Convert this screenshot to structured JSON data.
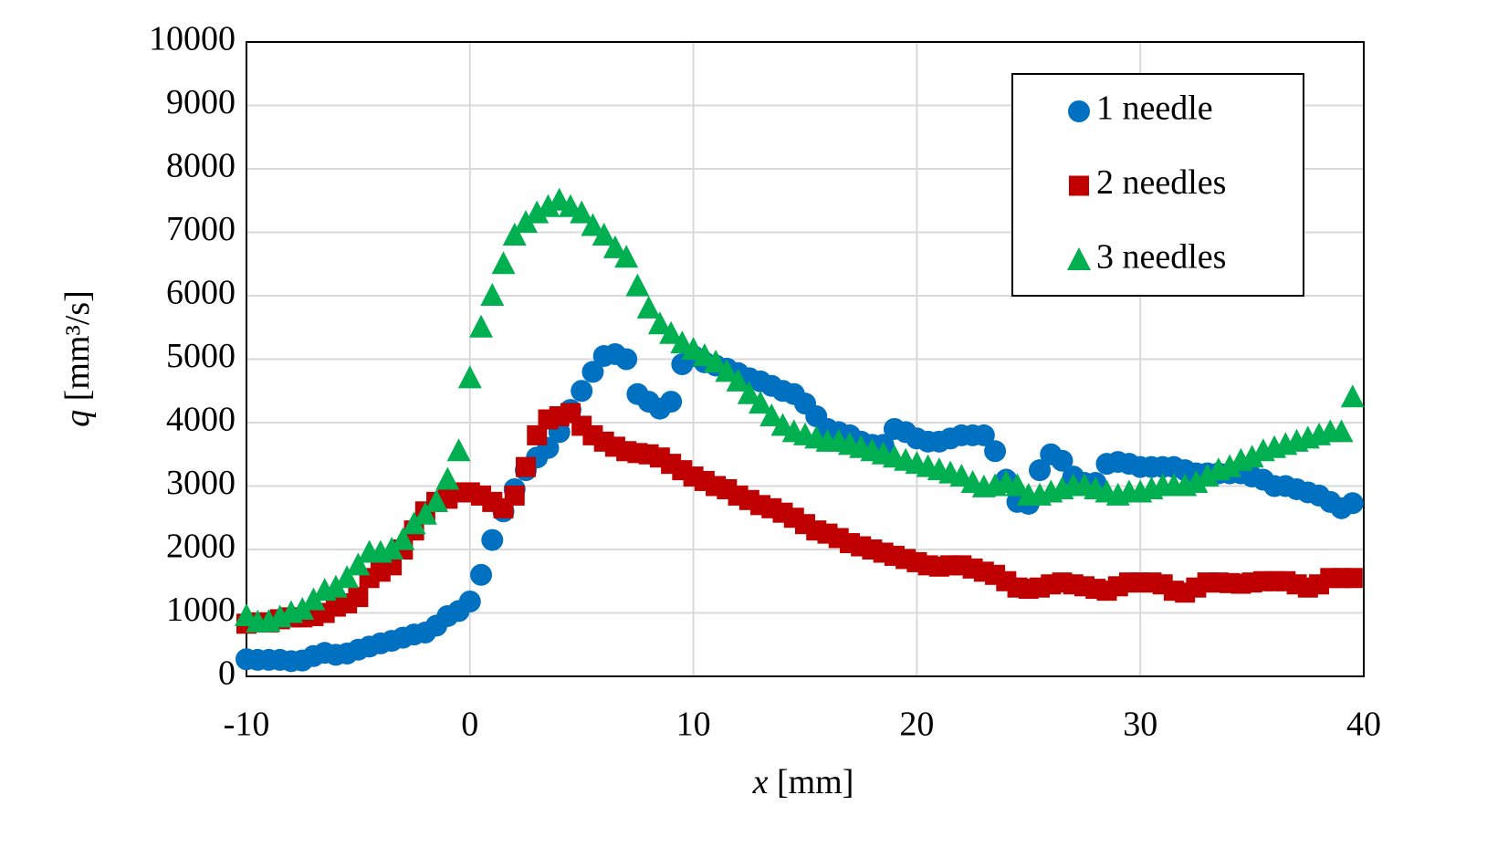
{
  "chart_data": {
    "type": "scatter",
    "xlabel": "x [mm]",
    "ylabel": "q [mm³/s]",
    "xlim": [
      -10,
      40
    ],
    "xticks": [
      -10,
      0,
      10,
      20,
      30,
      40
    ],
    "ylim": [
      0,
      10000
    ],
    "yticks": [
      0,
      1000,
      2000,
      3000,
      4000,
      5000,
      6000,
      7000,
      8000,
      9000,
      10000
    ],
    "grid": true,
    "legend": "upper right",
    "x": [
      -10,
      -9.5,
      -9,
      -8.5,
      -8,
      -7.5,
      -7,
      -6.5,
      -6,
      -5.5,
      -5,
      -4.5,
      -4,
      -3.5,
      -3,
      -2.5,
      -2,
      -1.5,
      -1,
      -0.5,
      0,
      0.5,
      1,
      1.5,
      2,
      2.5,
      3,
      3.5,
      4,
      4.5,
      5,
      5.5,
      6,
      6.5,
      7,
      7.5,
      8,
      8.5,
      9,
      9.5,
      10,
      10.5,
      11,
      11.5,
      12,
      12.5,
      13,
      13.5,
      14,
      14.5,
      15,
      15.5,
      16,
      16.5,
      17,
      17.5,
      18,
      18.5,
      19,
      19.5,
      20,
      20.5,
      21,
      21.5,
      22,
      22.5,
      23,
      23.5,
      24,
      24.5,
      25,
      25.5,
      26,
      26.5,
      27,
      27.5,
      28,
      28.5,
      29,
      29.5,
      30,
      30.5,
      31,
      31.5,
      32,
      32.5,
      33,
      33.5,
      34,
      34.5,
      35,
      35.5,
      36,
      36.5,
      37,
      37.5,
      38,
      38.5,
      39,
      39.5
    ],
    "series": [
      {
        "name": "1 needle",
        "color": "#0070c0",
        "marker": "circle",
        "values": [
          270,
          260,
          260,
          260,
          240,
          250,
          320,
          370,
          340,
          360,
          420,
          470,
          520,
          560,
          610,
          660,
          690,
          800,
          950,
          1030,
          1180,
          1600,
          2150,
          2600,
          2950,
          3250,
          3450,
          3600,
          3850,
          4200,
          4500,
          4800,
          5050,
          5080,
          5000,
          4450,
          4330,
          4220,
          4330,
          4920,
          5050,
          4950,
          4900,
          4850,
          4780,
          4700,
          4650,
          4580,
          4500,
          4450,
          4300,
          4100,
          3900,
          3850,
          3800,
          3700,
          3650,
          3650,
          3900,
          3850,
          3750,
          3700,
          3700,
          3750,
          3800,
          3800,
          3800,
          3550,
          3100,
          2750,
          2720,
          3250,
          3500,
          3400,
          3150,
          3050,
          3050,
          3350,
          3380,
          3350,
          3300,
          3300,
          3300,
          3300,
          3250,
          3200,
          3200,
          3200,
          3200,
          3200,
          3150,
          3100,
          3000,
          3000,
          2950,
          2900,
          2850,
          2750,
          2650,
          2730
        ]
      },
      {
        "name": "2 needles",
        "color": "#c00000",
        "marker": "square",
        "values": [
          830,
          850,
          850,
          900,
          930,
          930,
          950,
          1000,
          1100,
          1150,
          1250,
          1550,
          1650,
          1750,
          2000,
          2300,
          2600,
          2750,
          2800,
          2900,
          2900,
          2850,
          2750,
          2650,
          2850,
          3300,
          3800,
          4050,
          4100,
          4150,
          3950,
          3800,
          3700,
          3620,
          3550,
          3520,
          3500,
          3450,
          3350,
          3250,
          3150,
          3080,
          3000,
          2950,
          2850,
          2780,
          2700,
          2650,
          2580,
          2500,
          2400,
          2300,
          2250,
          2180,
          2100,
          2050,
          2000,
          1950,
          1900,
          1850,
          1800,
          1750,
          1730,
          1750,
          1750,
          1700,
          1650,
          1600,
          1500,
          1400,
          1380,
          1400,
          1450,
          1480,
          1450,
          1420,
          1380,
          1350,
          1420,
          1480,
          1480,
          1480,
          1450,
          1350,
          1320,
          1400,
          1480,
          1480,
          1470,
          1460,
          1480,
          1500,
          1500,
          1500,
          1450,
          1400,
          1450,
          1550,
          1550,
          1550
        ]
      },
      {
        "name": "3 needles",
        "color": "#00b050",
        "marker": "triangle",
        "values": [
          950,
          850,
          860,
          930,
          1000,
          1050,
          1200,
          1350,
          1400,
          1550,
          1750,
          1950,
          1950,
          2000,
          2150,
          2400,
          2550,
          2750,
          3100,
          3550,
          4700,
          5500,
          6000,
          6500,
          6950,
          7150,
          7300,
          7400,
          7500,
          7400,
          7300,
          7100,
          6950,
          6750,
          6600,
          6150,
          5800,
          5550,
          5400,
          5250,
          5150,
          5050,
          4950,
          4800,
          4650,
          4450,
          4300,
          4100,
          3950,
          3850,
          3800,
          3750,
          3700,
          3700,
          3650,
          3600,
          3550,
          3500,
          3450,
          3400,
          3350,
          3300,
          3250,
          3200,
          3150,
          3050,
          2980,
          3000,
          3050,
          3000,
          2850,
          2850,
          2900,
          2950,
          3000,
          3000,
          2950,
          2900,
          2850,
          2900,
          2900,
          2950,
          3000,
          3000,
          3000,
          3050,
          3150,
          3250,
          3300,
          3400,
          3450,
          3550,
          3600,
          3650,
          3700,
          3750,
          3800,
          3850,
          3850,
          4400
        ]
      }
    ]
  }
}
